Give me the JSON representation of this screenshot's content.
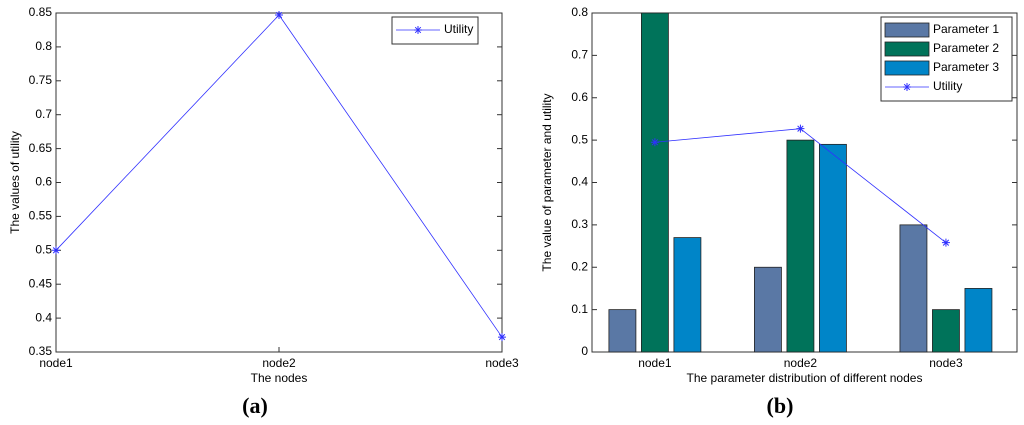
{
  "chart_data": [
    {
      "type": "line",
      "caption": "(a)",
      "xlabel": "The nodes",
      "ylabel": "The values of utility",
      "categories": [
        "node1",
        "node2",
        "node3"
      ],
      "series": [
        {
          "name": "Utility",
          "color": "#3030ff",
          "values": [
            0.5,
            0.847,
            0.372
          ]
        }
      ],
      "ylim": [
        0.35,
        0.85
      ],
      "yticks": [
        0.35,
        0.4,
        0.45,
        0.5,
        0.55,
        0.6,
        0.65,
        0.7,
        0.75,
        0.8,
        0.85
      ],
      "legend": "northeast"
    },
    {
      "type": "bar",
      "caption": "(b)",
      "xlabel": "The parameter distribution of different nodes",
      "ylabel": "The value of parameter and utility",
      "categories": [
        "node1",
        "node2",
        "node3"
      ],
      "series": [
        {
          "name": "Parameter 1",
          "color": "#5a78a5",
          "values": [
            0.1,
            0.2,
            0.3
          ]
        },
        {
          "name": "Parameter 2",
          "color": "#00735a",
          "values": [
            0.8,
            0.5,
            0.1
          ]
        },
        {
          "name": "Parameter 3",
          "color": "#0085c8",
          "values": [
            0.27,
            0.49,
            0.15
          ]
        },
        {
          "name": "Utility",
          "color": "#3030ff",
          "type": "line",
          "values": [
            0.495,
            0.527,
            0.258
          ]
        }
      ],
      "ylim": [
        0,
        0.8
      ],
      "yticks": [
        0,
        0.1,
        0.2,
        0.3,
        0.4,
        0.5,
        0.6,
        0.7,
        0.8
      ],
      "legend": "northeast"
    }
  ]
}
